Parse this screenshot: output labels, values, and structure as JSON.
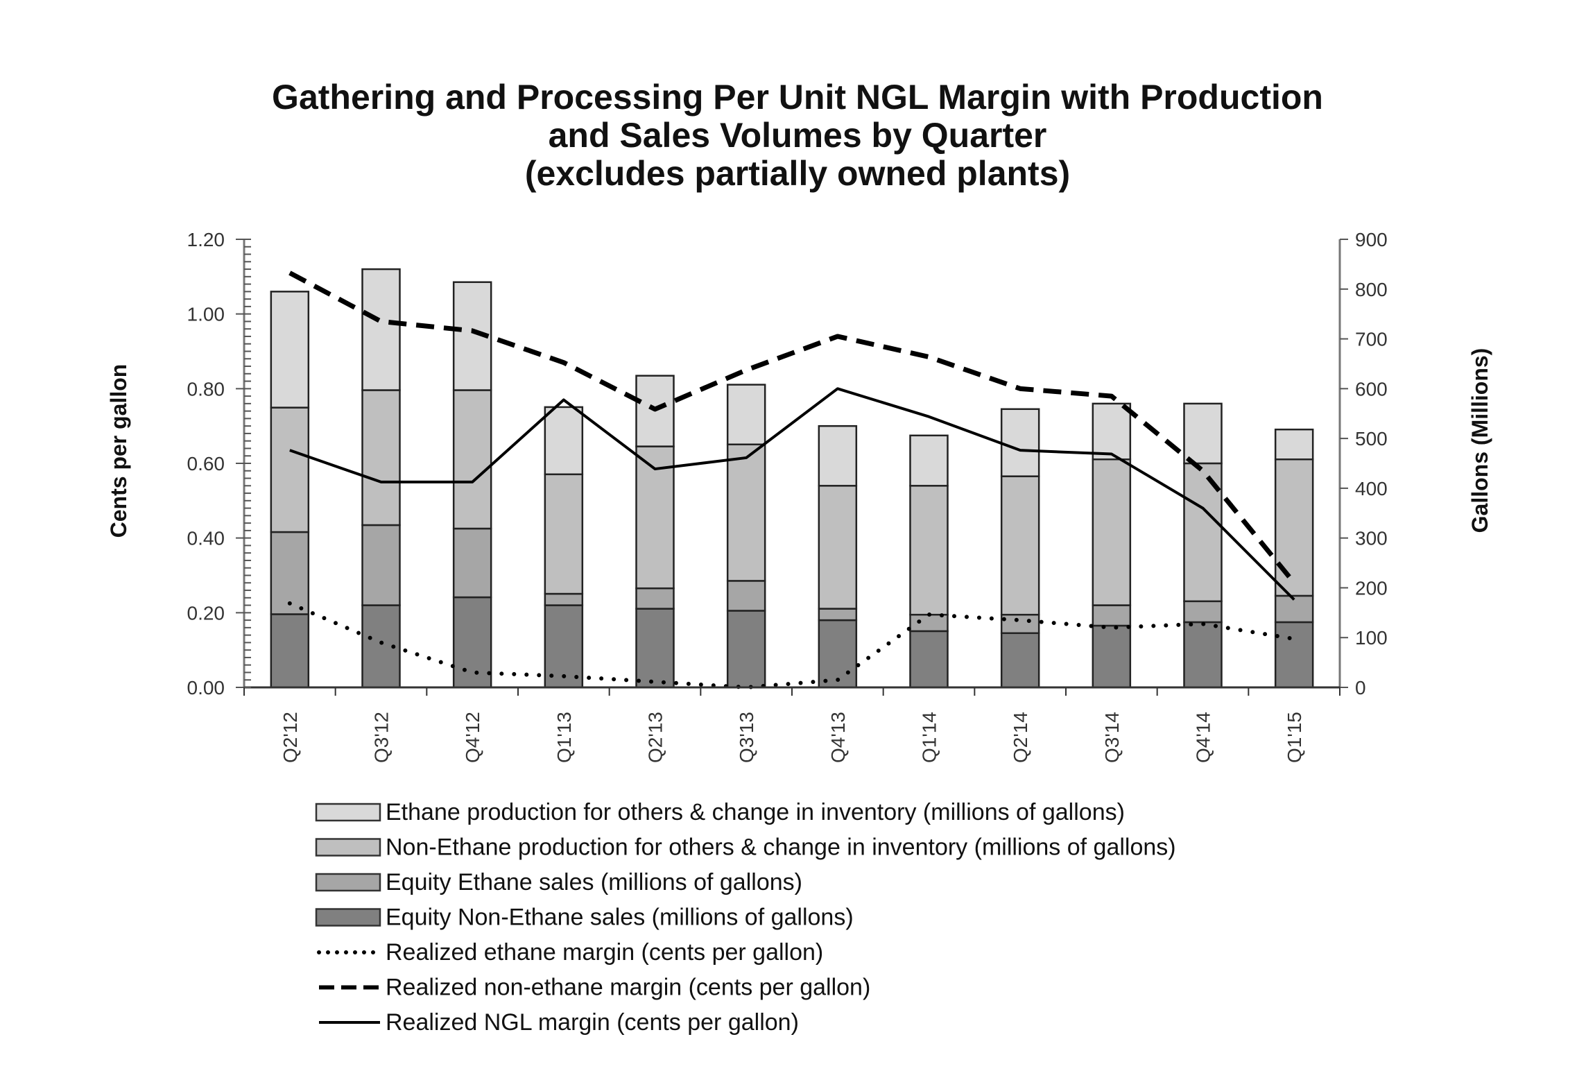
{
  "chart_data": {
    "type": "bar",
    "stacked": true,
    "title": [
      "Gathering and Processing Per Unit NGL Margin with Production",
      "and Sales Volumes by Quarter",
      "(excludes partially owned plants)"
    ],
    "ylabel_left": "Cents per gallon",
    "ylabel_right": "Gallons (Millions)",
    "ylim_left": [
      0,
      1.2
    ],
    "ylim_right": [
      0,
      900
    ],
    "yticks_left": [
      "0.00",
      "0.20",
      "0.40",
      "0.60",
      "0.80",
      "1.00",
      "1.20"
    ],
    "yticks_right": [
      "0",
      "100",
      "200",
      "300",
      "400",
      "500",
      "600",
      "700",
      "800",
      "900"
    ],
    "categories": [
      "Q2'12",
      "Q3'12",
      "Q4'12",
      "Q1'13",
      "Q2'13",
      "Q3'13",
      "Q4'13",
      "Q1'14",
      "Q2'14",
      "Q3'14",
      "Q4'14",
      "Q1'15"
    ],
    "bar_series": [
      {
        "name": "Equity Non-Ethane sales (millions of gallons)",
        "color": "#808080",
        "values": [
          147,
          165,
          181,
          165,
          158,
          154,
          135,
          113,
          109,
          124,
          131,
          131
        ]
      },
      {
        "name": "Equity Ethane sales (millions of gallons)",
        "color": "#a6a6a6",
        "values": [
          165,
          161,
          138,
          23,
          41,
          60,
          23,
          33,
          37,
          41,
          42,
          53
        ]
      },
      {
        "name": "Non-Ethane production for others & change in inventory (millions of gallons)",
        "color": "#bfbfbf",
        "values": [
          250,
          271,
          278,
          240,
          285,
          274,
          247,
          259,
          278,
          293,
          277,
          274
        ]
      },
      {
        "name": "Ethane production for others & change in inventory (millions of gallons)",
        "color": "#d9d9d9",
        "values": [
          233,
          243,
          217,
          135,
          142,
          120,
          120,
          101,
          135,
          112,
          120,
          60
        ]
      }
    ],
    "line_series": [
      {
        "name": "Realized ethane margin (cents per gallon)",
        "style": "dotted",
        "values": [
          0.225,
          0.12,
          0.04,
          0.03,
          0.015,
          0.0,
          0.02,
          0.195,
          0.18,
          0.16,
          0.17,
          0.13
        ]
      },
      {
        "name": "Realized non-ethane margin (cents per gallon)",
        "style": "dashed",
        "values": [
          1.11,
          0.98,
          0.955,
          0.87,
          0.745,
          0.85,
          0.94,
          0.885,
          0.8,
          0.78,
          0.58,
          0.28
        ]
      },
      {
        "name": "Realized NGL margin (cents per gallon)",
        "style": "solid",
        "values": [
          0.635,
          0.55,
          0.55,
          0.77,
          0.585,
          0.615,
          0.8,
          0.725,
          0.635,
          0.625,
          0.48,
          0.235
        ]
      }
    ],
    "legend_order": [
      "Ethane production for others & change in inventory (millions of gallons)",
      "Non-Ethane production for others & change in inventory (millions of gallons)",
      "Equity Ethane sales (millions of gallons)",
      "Equity Non-Ethane sales (millions of gallons)",
      "Realized ethane margin (cents per gallon)",
      "Realized non-ethane margin (cents per gallon)",
      "Realized NGL margin (cents per gallon)"
    ],
    "legend_position": "bottom",
    "grid": false
  }
}
